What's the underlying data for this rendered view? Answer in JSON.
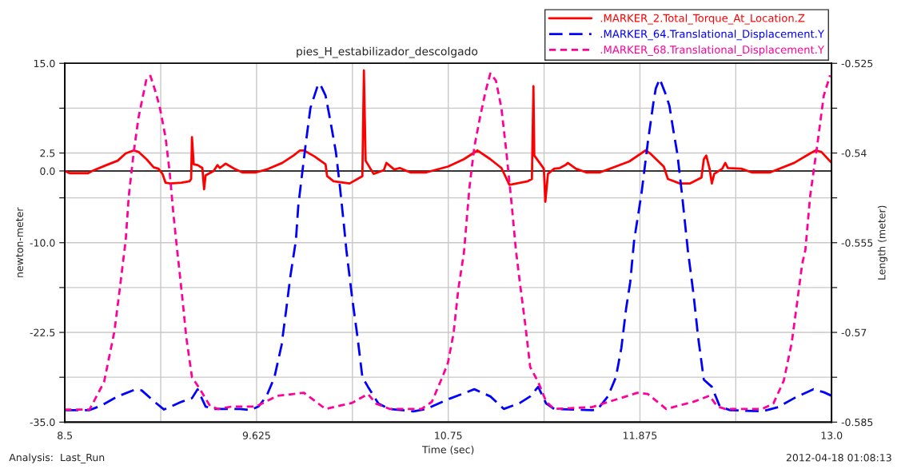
{
  "chart_data": {
    "type": "line",
    "title": "pies_H_estabilizador_descolgado",
    "xlabel": "Time (sec)",
    "ylabel": "newton-meter",
    "y2label": "Length (meter)",
    "annotations": [
      "Analysis:  Last_Run",
      "2012-04-18 01:08:13"
    ],
    "xlim": [
      8.5,
      13.0
    ],
    "xticks": [
      8.5,
      {
        "value": 9.0625,
        "label": null
      },
      9.625,
      {
        "value": 10.1875,
        "label": null
      },
      10.75,
      {
        "value": 11.3125,
        "label": null
      },
      11.875,
      {
        "value": 12.4375,
        "label": null
      },
      {
        "value": 13,
        "label": "13.0"
      }
    ],
    "ylim": [
      -35,
      15
    ],
    "yticks": [
      {
        "value": 15,
        "label": "15.0"
      },
      {
        "value": 8.75,
        "label": null
      },
      2.5,
      {
        "value": 0,
        "label": "0.0"
      },
      {
        "value": -3.75,
        "label": null
      },
      {
        "value": -10,
        "label": "-10.0"
      },
      {
        "value": -16.25,
        "label": null
      },
      -22.5,
      {
        "value": -28.75,
        "label": null
      },
      {
        "value": -35,
        "label": "-35.0"
      }
    ],
    "y2lim": [
      -0.585,
      -0.525
    ],
    "y2ticks": [
      -0.525,
      {
        "value": -0.5325,
        "label": null
      },
      -0.54,
      {
        "value": -0.5475,
        "label": null
      },
      -0.555,
      {
        "value": -0.5625,
        "label": null
      },
      -0.57,
      {
        "value": -0.5775,
        "label": null
      },
      -0.585
    ],
    "grid": true,
    "legend": "top right",
    "ref_lines": [
      {
        "axis": "y",
        "value": 0,
        "color": "#000000",
        "line_style": "solid"
      }
    ],
    "series": [
      {
        "name": ".MARKER_2.Total_Torque_At_Location.Z",
        "color": "#ff0000",
        "line_style": "solid",
        "axis": "y",
        "x": [
          8.5,
          8.528,
          8.636,
          8.66,
          8.744,
          8.81,
          8.857,
          8.904,
          8.932,
          8.979,
          9.021,
          9.049,
          9.073,
          9.091,
          9.119,
          9.185,
          9.232,
          9.241,
          9.246,
          9.256,
          9.279,
          9.307,
          9.317,
          9.326,
          9.373,
          9.396,
          9.41,
          9.443,
          9.495,
          9.542,
          9.622,
          9.683,
          9.776,
          9.842,
          9.88,
          9.903,
          9.964,
          10.03,
          10.039,
          10.077,
          10.171,
          10.246,
          10.255,
          10.265,
          10.312,
          10.372,
          10.387,
          10.433,
          10.466,
          10.527,
          10.621,
          10.748,
          10.842,
          10.922,
          10.997,
          11.062,
          11.109,
          11.217,
          11.241,
          11.25,
          11.255,
          11.311,
          11.32,
          11.335,
          11.372,
          11.405,
          11.438,
          11.452,
          11.499,
          11.56,
          11.64,
          11.813,
          11.907,
          11.935,
          12.015,
          12.039,
          12.109,
          12.17,
          12.236,
          12.25,
          12.264,
          12.283,
          12.297,
          12.311,
          12.358,
          12.376,
          12.391,
          12.47,
          12.531,
          12.639,
          12.78,
          12.874,
          12.907,
          12.94,
          13.0
        ],
        "values": [
          0,
          -0.31,
          -0.31,
          0,
          0.82,
          1.43,
          2.45,
          2.86,
          2.66,
          1.64,
          0.51,
          0.31,
          -0.41,
          -1.64,
          -1.74,
          -1.64,
          -1.43,
          -1.12,
          4.7,
          0.92,
          0.82,
          0.41,
          -2.56,
          -0.61,
          0,
          0.82,
          0.41,
          1.02,
          0.31,
          -0.2,
          -0.2,
          0.2,
          1.12,
          2.15,
          2.86,
          2.86,
          2.04,
          0.92,
          -0.72,
          -1.43,
          -1.74,
          -0.72,
          14.0,
          1.43,
          -0.41,
          0.1,
          1.12,
          0.2,
          0.41,
          -0.2,
          -0.2,
          0.61,
          1.64,
          2.86,
          1.64,
          0.41,
          -1.94,
          -1.43,
          -1.12,
          11.8,
          2.15,
          0.31,
          -4.29,
          -0.41,
          0.31,
          0.41,
          0.82,
          1.12,
          0.31,
          -0.2,
          -0.2,
          1.33,
          2.86,
          2.45,
          0.61,
          -1.12,
          -1.74,
          -1.74,
          -0.92,
          1.64,
          2.15,
          0.41,
          -1.74,
          -0.41,
          0.31,
          1.12,
          0.41,
          0.31,
          -0.2,
          -0.2,
          1.12,
          2.45,
          2.86,
          2.66,
          1.12
        ]
      },
      {
        "name": ".MARKER_64.Translational_Displacement.Y",
        "color": "#0000ff",
        "line_style": "dashed",
        "axis": "y2",
        "x": [
          8.5,
          8.645,
          8.716,
          8.81,
          8.908,
          8.951,
          9.026,
          9.082,
          9.185,
          9.246,
          9.279,
          9.326,
          9.373,
          9.528,
          9.589,
          9.636,
          9.683,
          9.73,
          9.772,
          9.8,
          9.823,
          9.856,
          9.87,
          9.913,
          9.941,
          9.983,
          9.997,
          10.03,
          10.058,
          10.091,
          10.114,
          10.138,
          10.152,
          10.185,
          10.218,
          10.246,
          10.279,
          10.34,
          10.405,
          10.546,
          10.621,
          10.748,
          10.903,
          10.997,
          11.076,
          11.17,
          11.231,
          11.278,
          11.325,
          11.372,
          11.593,
          11.626,
          11.687,
          11.734,
          11.766,
          11.794,
          11.818,
          11.841,
          11.884,
          11.921,
          11.954,
          11.968,
          11.991,
          12.024,
          12.048,
          12.071,
          12.095,
          12.123,
          12.156,
          12.189,
          12.217,
          12.25,
          12.297,
          12.344,
          12.405,
          12.592,
          12.686,
          12.78,
          12.893,
          12.954,
          13.0
        ],
        "values": [
          -0.583,
          -0.583,
          -0.5822,
          -0.5807,
          -0.5796,
          -0.5797,
          -0.5816,
          -0.5829,
          -0.5816,
          -0.581,
          -0.5795,
          -0.5824,
          -0.5828,
          -0.5828,
          -0.583,
          -0.5824,
          -0.5807,
          -0.5775,
          -0.5721,
          -0.566,
          -0.5607,
          -0.5546,
          -0.5488,
          -0.5386,
          -0.5325,
          -0.5288,
          -0.5284,
          -0.5304,
          -0.5346,
          -0.5399,
          -0.5456,
          -0.5521,
          -0.5562,
          -0.564,
          -0.5709,
          -0.5775,
          -0.5791,
          -0.5819,
          -0.5828,
          -0.5832,
          -0.5828,
          -0.5812,
          -0.5795,
          -0.5807,
          -0.5828,
          -0.5818,
          -0.5807,
          -0.5791,
          -0.5819,
          -0.5828,
          -0.583,
          -0.5829,
          -0.5807,
          -0.5775,
          -0.5726,
          -0.566,
          -0.5616,
          -0.5546,
          -0.5468,
          -0.5383,
          -0.5316,
          -0.5292,
          -0.5276,
          -0.53,
          -0.5321,
          -0.5362,
          -0.5402,
          -0.5472,
          -0.5562,
          -0.5635,
          -0.5709,
          -0.5779,
          -0.5791,
          -0.5824,
          -0.583,
          -0.5832,
          -0.5825,
          -0.581,
          -0.5795,
          -0.58,
          -0.5806
        ]
      },
      {
        "name": ".MARKER_68.Translational_Displacement.Y",
        "color": "#ff0099",
        "line_style": "dotted",
        "axis": "y2",
        "x": [
          8.5,
          8.645,
          8.73,
          8.791,
          8.824,
          8.857,
          8.875,
          8.904,
          8.932,
          8.979,
          9.002,
          9.035,
          9.058,
          9.091,
          9.115,
          9.138,
          9.162,
          9.19,
          9.213,
          9.246,
          9.293,
          9.354,
          9.401,
          9.481,
          9.622,
          9.748,
          9.903,
          10.03,
          10.185,
          10.279,
          10.326,
          10.405,
          10.593,
          10.654,
          10.715,
          10.748,
          10.781,
          10.809,
          10.842,
          10.875,
          10.903,
          10.936,
          10.969,
          10.997,
          11.03,
          11.062,
          11.09,
          11.123,
          11.147,
          11.17,
          11.203,
          11.231,
          11.278,
          11.325,
          11.372,
          11.593,
          11.86,
          11.921,
          12.029,
          12.189,
          12.283,
          12.33,
          12.376,
          12.592,
          12.658,
          12.719,
          12.766,
          12.799,
          12.827,
          12.846,
          12.874,
          12.916,
          12.954,
          12.991
        ],
        "values": [
          -0.5829,
          -0.5829,
          -0.5783,
          -0.5698,
          -0.5623,
          -0.5546,
          -0.5472,
          -0.5399,
          -0.5341,
          -0.5276,
          -0.5271,
          -0.53,
          -0.5325,
          -0.5374,
          -0.5432,
          -0.5505,
          -0.557,
          -0.5644,
          -0.5709,
          -0.5775,
          -0.5795,
          -0.5824,
          -0.5828,
          -0.5824,
          -0.5824,
          -0.5806,
          -0.5801,
          -0.5828,
          -0.5818,
          -0.5803,
          -0.5819,
          -0.5828,
          -0.5828,
          -0.5816,
          -0.5775,
          -0.5751,
          -0.5702,
          -0.5628,
          -0.5567,
          -0.5456,
          -0.539,
          -0.5341,
          -0.5297,
          -0.5267,
          -0.5279,
          -0.5325,
          -0.5395,
          -0.5488,
          -0.5562,
          -0.5616,
          -0.5689,
          -0.5758,
          -0.5783,
          -0.5816,
          -0.5828,
          -0.5825,
          -0.5801,
          -0.5803,
          -0.5828,
          -0.5816,
          -0.5806,
          -0.5824,
          -0.5828,
          -0.5828,
          -0.5819,
          -0.5781,
          -0.5717,
          -0.5647,
          -0.5586,
          -0.5562,
          -0.5472,
          -0.5386,
          -0.5304,
          -0.527
        ]
      }
    ]
  }
}
